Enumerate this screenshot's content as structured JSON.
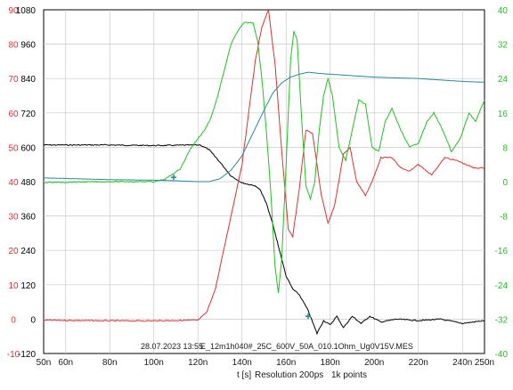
{
  "chart_data": {
    "type": "line",
    "title": "",
    "timestamp": "28.07.2023 13:55",
    "file_name": "E_12m1h040#_25C_600V_50A_010.1Ohm_Ug0V15V.MES",
    "xlabel": "t [s]",
    "resolution_text": "Resolution 200ps",
    "points_text": "1k points",
    "x_range_ns": [
      50,
      250
    ],
    "x_ticks": [
      {
        "v": 50,
        "label": "50n"
      },
      {
        "v": 60,
        "label": "60n"
      },
      {
        "v": 80,
        "label": "80n"
      },
      {
        "v": 100,
        "label": "100n"
      },
      {
        "v": 120,
        "label": "120n"
      },
      {
        "v": 140,
        "label": "140n"
      },
      {
        "v": 160,
        "label": "160n"
      },
      {
        "v": 180,
        "label": "180n"
      },
      {
        "v": 200,
        "label": "200n"
      },
      {
        "v": 220,
        "label": "220n"
      },
      {
        "v": 240,
        "label": "240n"
      },
      {
        "v": 250,
        "label": "250n"
      }
    ],
    "axes": [
      {
        "id": "red",
        "side": "left-outer",
        "color": "#e03030",
        "range": [
          -10,
          90
        ],
        "ticks": [
          90,
          80,
          70,
          60,
          50,
          40,
          30,
          20,
          10,
          0,
          -10
        ]
      },
      {
        "id": "black",
        "side": "left-inner",
        "color": "#000000",
        "range": [
          -120,
          1080
        ],
        "ticks": [
          1080,
          960,
          840,
          720,
          600,
          480,
          360,
          240,
          120,
          0,
          -120
        ]
      },
      {
        "id": "green",
        "side": "right",
        "color": "#22c022",
        "range": [
          -40,
          40
        ],
        "ticks": [
          40,
          32,
          24,
          16,
          8,
          0,
          -8,
          -16,
          -24,
          -32,
          -40
        ]
      }
    ],
    "grid": true,
    "series": [
      {
        "axis": "black",
        "color": "#000000",
        "points": [
          [
            50,
            608
          ],
          [
            80,
            608
          ],
          [
            100,
            606
          ],
          [
            121,
            608
          ],
          [
            125,
            592
          ],
          [
            130,
            548
          ],
          [
            135,
            500
          ],
          [
            140,
            476
          ],
          [
            143,
            470
          ],
          [
            145,
            468
          ],
          [
            148,
            455
          ],
          [
            151,
            405
          ],
          [
            154,
            330
          ],
          [
            157,
            240
          ],
          [
            160,
            150
          ],
          [
            163,
            105
          ],
          [
            166,
            85
          ],
          [
            170,
            30
          ],
          [
            174,
            -50
          ],
          [
            177,
            -5
          ],
          [
            180,
            -20
          ],
          [
            183,
            10
          ],
          [
            186,
            -30
          ],
          [
            190,
            10
          ],
          [
            194,
            -15
          ],
          [
            198,
            10
          ],
          [
            203,
            -10
          ],
          [
            210,
            0
          ],
          [
            220,
            -5
          ],
          [
            230,
            0
          ],
          [
            240,
            -15
          ],
          [
            250,
            -5
          ]
        ]
      },
      {
        "axis": "red",
        "color": "#e03030",
        "points": [
          [
            50,
            -0.3
          ],
          [
            80,
            -0.5
          ],
          [
            100,
            -0.5
          ],
          [
            120,
            -0.3
          ],
          [
            124,
            2
          ],
          [
            128,
            9
          ],
          [
            132,
            21
          ],
          [
            136,
            33
          ],
          [
            140,
            45
          ],
          [
            143,
            60
          ],
          [
            146,
            75
          ],
          [
            149,
            85
          ],
          [
            152,
            90
          ],
          [
            155,
            74
          ],
          [
            158,
            49
          ],
          [
            161,
            26
          ],
          [
            163,
            24
          ],
          [
            166,
            38
          ],
          [
            169,
            55
          ],
          [
            172,
            54
          ],
          [
            176,
            36
          ],
          [
            179,
            28
          ],
          [
            182,
            33
          ],
          [
            186,
            48
          ],
          [
            189,
            50
          ],
          [
            192,
            40
          ],
          [
            196,
            36
          ],
          [
            199,
            40
          ],
          [
            203,
            47
          ],
          [
            208,
            47
          ],
          [
            212,
            44
          ],
          [
            216,
            43
          ],
          [
            220,
            45
          ],
          [
            226,
            42
          ],
          [
            232,
            47
          ],
          [
            238,
            46
          ],
          [
            245,
            44
          ],
          [
            250,
            44
          ]
        ]
      },
      {
        "axis": "green",
        "color": "#22c022",
        "points": [
          [
            50,
            -0.2
          ],
          [
            80,
            0
          ],
          [
            100,
            0
          ],
          [
            105,
            0.5
          ],
          [
            112,
            3
          ],
          [
            117,
            8
          ],
          [
            120,
            10
          ],
          [
            123,
            12
          ],
          [
            126,
            15
          ],
          [
            129,
            20
          ],
          [
            132,
            26
          ],
          [
            135,
            32
          ],
          [
            138,
            35
          ],
          [
            141,
            37
          ],
          [
            145,
            37
          ],
          [
            147,
            33
          ],
          [
            149,
            24
          ],
          [
            151,
            12
          ],
          [
            153,
            -2
          ],
          [
            155,
            -20
          ],
          [
            156.5,
            -26
          ],
          [
            158,
            -18
          ],
          [
            160,
            4
          ],
          [
            162,
            28
          ],
          [
            163.5,
            35
          ],
          [
            165,
            33
          ],
          [
            167,
            15
          ],
          [
            169,
            -1
          ],
          [
            171,
            -4
          ],
          [
            173,
            0
          ],
          [
            175,
            12
          ],
          [
            177,
            20
          ],
          [
            179,
            24
          ],
          [
            181,
            20
          ],
          [
            184,
            8
          ],
          [
            187,
            5
          ],
          [
            190,
            12
          ],
          [
            193,
            19
          ],
          [
            196,
            18
          ],
          [
            199,
            8
          ],
          [
            202,
            7
          ],
          [
            205,
            14
          ],
          [
            208,
            17
          ],
          [
            212,
            12
          ],
          [
            216,
            8
          ],
          [
            220,
            9
          ],
          [
            224,
            14
          ],
          [
            227,
            16
          ],
          [
            231,
            12
          ],
          [
            235,
            7
          ],
          [
            239,
            10
          ],
          [
            243,
            16
          ],
          [
            246,
            14
          ],
          [
            250,
            19
          ]
        ]
      },
      {
        "axis": "black",
        "color": "#2a8a9a",
        "points": [
          [
            50,
            493
          ],
          [
            80,
            487
          ],
          [
            100,
            485
          ],
          [
            110,
            483
          ],
          [
            120,
            480
          ],
          [
            125,
            480
          ],
          [
            130,
            490
          ],
          [
            135,
            520
          ],
          [
            140,
            570
          ],
          [
            145,
            650
          ],
          [
            150,
            730
          ],
          [
            154,
            790
          ],
          [
            158,
            825
          ],
          [
            162,
            845
          ],
          [
            166,
            855
          ],
          [
            170,
            862
          ],
          [
            175,
            858
          ],
          [
            180,
            855
          ],
          [
            190,
            850
          ],
          [
            200,
            845
          ],
          [
            220,
            840
          ],
          [
            240,
            830
          ],
          [
            250,
            827
          ]
        ]
      }
    ],
    "markers": [
      {
        "axis": "green",
        "x": 109,
        "y": 1,
        "color": "#2a8a9a"
      },
      {
        "axis": "black",
        "x": 170,
        "y": 10,
        "color": "#2a8a9a"
      }
    ]
  }
}
